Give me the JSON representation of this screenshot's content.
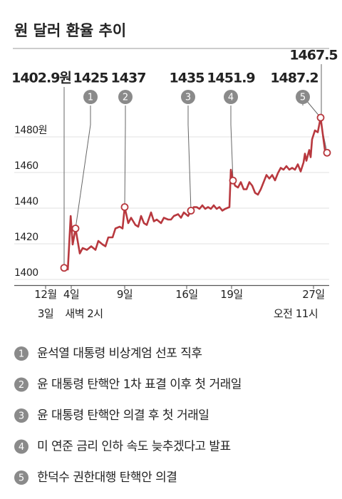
{
  "chart_data": {
    "type": "line",
    "title": "원 달러 환율 추이",
    "color": "#b8383e",
    "grid": true,
    "xlim": [
      0,
      100
    ],
    "ylim": [
      1393,
      1490
    ],
    "yticks": [
      {
        "value": 1480,
        "label": "1480원"
      },
      1460,
      1440,
      1420,
      1400
    ],
    "xticks": [
      {
        "value": 1,
        "label": "12월"
      },
      {
        "value": 10,
        "label": "4일"
      },
      {
        "value": 28.75,
        "label": "9일"
      },
      {
        "value": 50.5,
        "label": "16일"
      },
      {
        "value": 66.25,
        "label": "19일"
      },
      {
        "value": 95,
        "label": "27일"
      }
    ],
    "x_sublabels": [
      {
        "x": 1,
        "label": "3일"
      },
      {
        "x": 14.5,
        "label": "새벽 2시"
      },
      {
        "x": 88.75,
        "label": "오전 11시"
      }
    ],
    "series": [
      {
        "name": "원 달러 환율",
        "x": [
          7.5,
          8.8,
          9.8,
          10.5,
          11.5,
          13,
          14,
          15.5,
          17,
          18.5,
          19.5,
          21,
          22,
          23,
          24.5,
          25.5,
          27,
          28,
          28.75,
          30,
          31,
          32.5,
          33.5,
          34.5,
          35.5,
          36.5,
          38,
          39,
          40,
          41.5,
          42.5,
          44,
          45,
          46,
          47.5,
          48.5,
          49.5,
          51,
          52,
          53,
          54,
          55,
          56,
          57,
          58,
          59,
          60,
          61,
          62,
          63,
          64,
          65.5,
          66,
          66.75,
          67.5,
          68.5,
          69.5,
          70.5,
          71.5,
          72.5,
          73.5,
          74.5,
          75.5,
          76.5,
          77.5,
          78.5,
          79.5,
          80.5,
          81.5,
          82.5,
          83.5,
          84.5,
          85.5,
          86.5,
          87.5,
          88.5,
          89.5,
          90.5,
          91.5,
          92,
          92.5,
          93.5,
          94,
          94.5,
          95.5,
          96.5,
          97.5,
          98.5,
          99,
          99.75
        ],
        "values": [
          1402.9,
          1402,
          1432,
          1416,
          1425,
          1411,
          1414,
          1413,
          1415,
          1413,
          1418,
          1416,
          1415,
          1420,
          1420,
          1425,
          1426,
          1425,
          1437,
          1428,
          1431,
          1427,
          1426,
          1432,
          1428,
          1427,
          1434,
          1429,
          1430,
          1428,
          1431,
          1430,
          1430,
          1432,
          1433,
          1431,
          1434,
          1432,
          1435,
          1437,
          1437,
          1436,
          1438,
          1436,
          1437,
          1436,
          1438,
          1436,
          1437,
          1435,
          1436,
          1437,
          1458,
          1451.9,
          1449,
          1448,
          1451,
          1447,
          1447,
          1451,
          1449,
          1445,
          1444,
          1447,
          1451,
          1455,
          1453,
          1455,
          1452,
          1456,
          1459,
          1458,
          1460,
          1458,
          1459,
          1458,
          1461,
          1457,
          1462,
          1467,
          1463,
          1469,
          1465,
          1475,
          1480,
          1479,
          1487.2,
          1475,
          1469,
          1467.5
        ]
      }
    ],
    "callouts": [
      {
        "x": 7.5,
        "value": 1402.9,
        "label": "1402.9원"
      },
      {
        "x": 11.5,
        "value": 1425,
        "label": "1425",
        "badge": "1"
      },
      {
        "x": 28.75,
        "value": 1437,
        "label": "1437",
        "badge": "2"
      },
      {
        "x": 52,
        "value": 1435,
        "label": "1435",
        "badge": "3"
      },
      {
        "x": 66.75,
        "value": 1451.9,
        "label": "1451.9",
        "badge": "4"
      },
      {
        "x": 97.5,
        "value": 1487.2,
        "label": "1487.2",
        "badge": "5"
      },
      {
        "x": 99.75,
        "value": 1467.5,
        "label": "1467.5"
      }
    ],
    "notes": [
      {
        "number": "1",
        "text": "윤석열 대통령 비상계엄 선포 직후"
      },
      {
        "number": "2",
        "text": "윤 대통령 탄핵안 1차 표결 이후 첫 거래일"
      },
      {
        "number": "3",
        "text": "윤 대통령 탄핵안 의결 후 첫 거래일"
      },
      {
        "number": "4",
        "text": "미 연준 금리 인하 속도 늦추겠다고 발표"
      },
      {
        "number": "5",
        "text": "한덕수 권한대행 탄핵안 의결"
      }
    ]
  }
}
